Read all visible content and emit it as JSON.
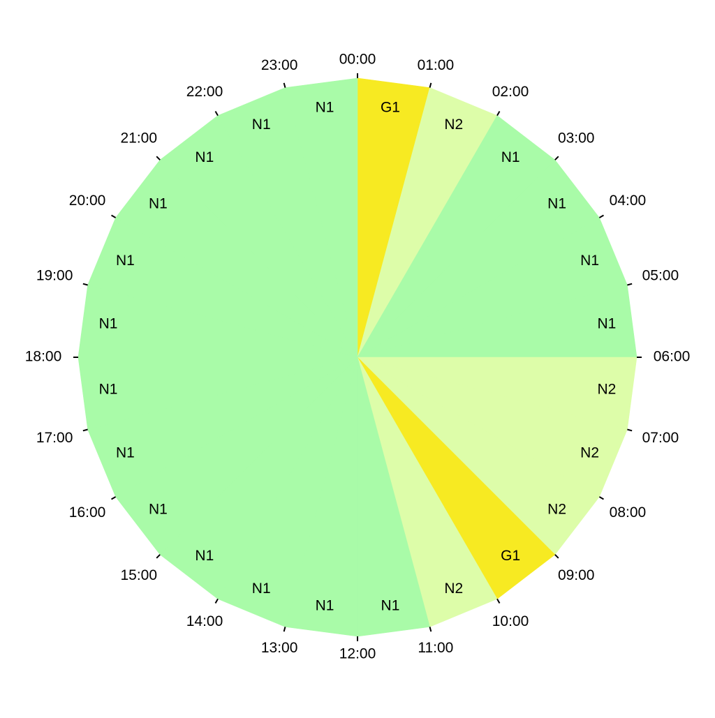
{
  "hours": [
    "00:00",
    "01:00",
    "02:00",
    "03:00",
    "04:00",
    "05:00",
    "06:00",
    "07:00",
    "08:00",
    "09:00",
    "10:00",
    "11:00",
    "12:00",
    "13:00",
    "14:00",
    "15:00",
    "16:00",
    "17:00",
    "18:00",
    "19:00",
    "20:00",
    "21:00",
    "22:00",
    "23:00"
  ],
  "segments": [
    {
      "label": "G1",
      "color": "#f7ea22"
    },
    {
      "label": "N2",
      "color": "#ddfda9"
    },
    {
      "label": "N1",
      "color": "#a9fba8"
    },
    {
      "label": "N1",
      "color": "#a9fba8"
    },
    {
      "label": "N1",
      "color": "#a9fba8"
    },
    {
      "label": "N1",
      "color": "#a9fba8"
    },
    {
      "label": "N2",
      "color": "#ddfda9"
    },
    {
      "label": "N2",
      "color": "#ddfda9"
    },
    {
      "label": "N2",
      "color": "#ddfda9"
    },
    {
      "label": "G1",
      "color": "#f7ea22"
    },
    {
      "label": "N2",
      "color": "#ddfda9"
    },
    {
      "label": "N1",
      "color": "#a9fba8"
    },
    {
      "label": "N1",
      "color": "#a9fba8"
    },
    {
      "label": "N1",
      "color": "#a9fba8"
    },
    {
      "label": "N1",
      "color": "#a9fba8"
    },
    {
      "label": "N1",
      "color": "#a9fba8"
    },
    {
      "label": "N1",
      "color": "#a9fba8"
    },
    {
      "label": "N1",
      "color": "#a9fba8"
    },
    {
      "label": "N1",
      "color": "#a9fba8"
    },
    {
      "label": "N1",
      "color": "#a9fba8"
    },
    {
      "label": "N1",
      "color": "#a9fba8"
    },
    {
      "label": "N1",
      "color": "#a9fba8"
    },
    {
      "label": "N1",
      "color": "#a9fba8"
    },
    {
      "label": "N1",
      "color": "#a9fba8"
    }
  ]
}
